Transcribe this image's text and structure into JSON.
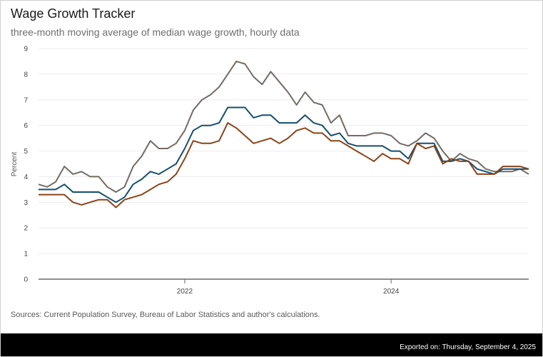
{
  "header": {
    "title": "Wage Growth Tracker",
    "subtitle": "three-month moving average of median wage growth, hourly data"
  },
  "footer": {
    "source": "Sources: Current Population Survey, Bureau of Labor Statistics and author's calculations.",
    "exported": "Exported on: Thursday, September 4, 2025"
  },
  "chart_data": {
    "type": "line",
    "title": "Wage Growth Tracker",
    "subtitle": "three-month moving average of median wage growth, hourly data",
    "ylabel": "Percent",
    "xlabel": "",
    "ylim": [
      0,
      9
    ],
    "yticks": [
      0,
      1,
      2,
      3,
      4,
      5,
      6,
      7,
      8,
      9
    ],
    "xlim": [
      "2020-08",
      "2025-05"
    ],
    "xticks": [
      {
        "value": "2022-01",
        "label": "2022"
      },
      {
        "value": "2024-01",
        "label": "2024"
      }
    ],
    "grid": true,
    "legend": "none",
    "x": [
      "2020-08",
      "2020-09",
      "2020-10",
      "2020-11",
      "2020-12",
      "2021-01",
      "2021-02",
      "2021-03",
      "2021-04",
      "2021-05",
      "2021-06",
      "2021-07",
      "2021-08",
      "2021-09",
      "2021-10",
      "2021-11",
      "2021-12",
      "2022-01",
      "2022-02",
      "2022-03",
      "2022-04",
      "2022-05",
      "2022-06",
      "2022-07",
      "2022-08",
      "2022-09",
      "2022-10",
      "2022-11",
      "2022-12",
      "2023-01",
      "2023-02",
      "2023-03",
      "2023-04",
      "2023-05",
      "2023-06",
      "2023-07",
      "2023-08",
      "2023-09",
      "2023-10",
      "2023-11",
      "2023-12",
      "2024-01",
      "2024-02",
      "2024-03",
      "2024-04",
      "2024-05",
      "2024-06",
      "2024-07",
      "2024-08",
      "2024-09",
      "2024-10",
      "2024-11",
      "2024-12",
      "2025-01",
      "2025-02",
      "2025-03",
      "2025-04",
      "2025-05"
    ],
    "series": [
      {
        "color": "#736b64",
        "values": [
          3.7,
          3.6,
          3.8,
          4.4,
          4.1,
          4.2,
          4.0,
          4.0,
          3.6,
          3.4,
          3.6,
          4.4,
          4.8,
          5.4,
          5.1,
          5.1,
          5.3,
          5.8,
          6.6,
          7.0,
          7.2,
          7.5,
          8.0,
          8.5,
          8.4,
          7.9,
          7.6,
          8.1,
          7.7,
          7.3,
          6.8,
          7.3,
          6.9,
          6.8,
          6.1,
          6.4,
          5.6,
          5.6,
          5.6,
          5.7,
          5.7,
          5.6,
          5.3,
          5.2,
          5.4,
          5.7,
          5.5,
          5.0,
          4.6,
          4.9,
          4.7,
          4.6,
          4.3,
          4.2,
          4.2,
          4.2,
          4.3,
          4.1
        ]
      },
      {
        "color": "#134f6e",
        "values": [
          3.5,
          3.5,
          3.5,
          3.7,
          3.4,
          3.4,
          3.4,
          3.4,
          3.2,
          3.0,
          3.2,
          3.7,
          3.9,
          4.2,
          4.1,
          4.3,
          4.5,
          5.1,
          5.8,
          6.0,
          6.0,
          6.1,
          6.7,
          6.7,
          6.7,
          6.3,
          6.4,
          6.4,
          6.1,
          6.1,
          6.1,
          6.4,
          6.1,
          6.0,
          5.6,
          5.7,
          5.3,
          5.2,
          5.2,
          5.2,
          5.2,
          5.0,
          5.0,
          4.7,
          5.3,
          5.3,
          5.3,
          4.6,
          4.6,
          4.7,
          4.6,
          4.3,
          4.2,
          4.1,
          4.3,
          4.3,
          4.3,
          4.3
        ]
      },
      {
        "color": "#8c4318",
        "values": [
          3.3,
          3.3,
          3.3,
          3.3,
          3.0,
          2.9,
          3.0,
          3.1,
          3.1,
          2.8,
          3.1,
          3.2,
          3.3,
          3.5,
          3.7,
          3.8,
          4.1,
          4.7,
          5.4,
          5.3,
          5.3,
          5.4,
          6.1,
          5.9,
          5.6,
          5.3,
          5.4,
          5.5,
          5.3,
          5.5,
          5.8,
          5.9,
          5.7,
          5.7,
          5.4,
          5.4,
          5.2,
          5.0,
          4.8,
          4.6,
          4.9,
          4.7,
          4.7,
          4.5,
          5.3,
          5.1,
          5.2,
          4.5,
          4.7,
          4.6,
          4.6,
          4.1,
          4.1,
          4.1,
          4.4,
          4.4,
          4.4,
          4.3
        ]
      }
    ]
  }
}
